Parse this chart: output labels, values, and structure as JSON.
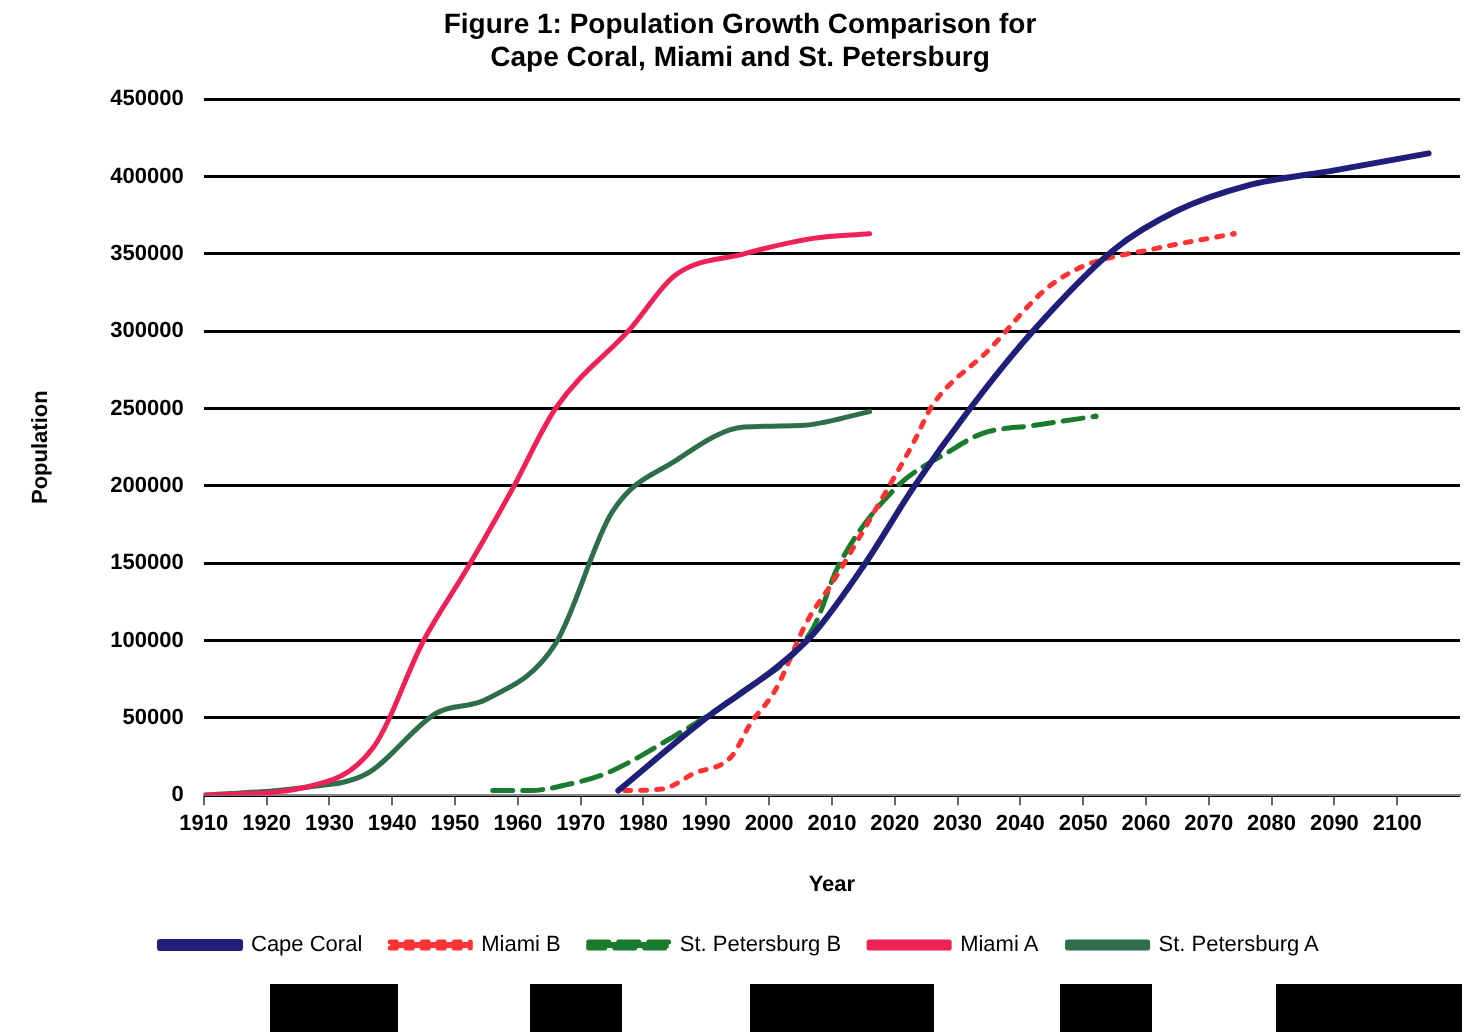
{
  "chart_data": {
    "type": "line",
    "title": "Figure 1: Population Growth Comparison for Cape Coral, Miami and St. Petersburg",
    "xlabel": "Year",
    "ylabel": "Population",
    "xlim": [
      1910,
      2110
    ],
    "xticks": [
      1910,
      1920,
      1930,
      1940,
      1950,
      1960,
      1970,
      1980,
      1990,
      2000,
      2010,
      2020,
      2030,
      2040,
      2050,
      2060,
      2070,
      2080,
      2090,
      2100
    ],
    "ylim": [
      0,
      450000
    ],
    "yticks": [
      0,
      50000,
      100000,
      150000,
      200000,
      250000,
      300000,
      350000,
      400000,
      450000
    ],
    "grid": "y",
    "legend": "bottom",
    "marker": "none",
    "series": [
      {
        "name": "Cape Coral",
        "color": "#1f1f7a",
        "line_style": "solid",
        "x": [
          1976,
          1990,
          2001,
          2007,
          2015,
          2023,
          2032,
          2042,
          2055,
          2065,
          2076,
          2090,
          2105
        ],
        "values": [
          3000,
          50000,
          82000,
          104000,
          148000,
          199000,
          250000,
          300000,
          353000,
          378000,
          394000,
          404000,
          415000
        ]
      },
      {
        "name": "Miami B",
        "color": "#ff3333",
        "line_style": "dotted",
        "x": [
          1977,
          1983,
          1988,
          1994,
          1997,
          2001,
          2006,
          2010,
          2017,
          2023,
          2026,
          2035,
          2044,
          2050,
          2061,
          2074
        ],
        "values": [
          3000,
          4000,
          14000,
          25000,
          46000,
          68000,
          112000,
          137000,
          185000,
          228000,
          252000,
          288000,
          327000,
          342000,
          353000,
          363000
        ]
      },
      {
        "name": "St. Petersburg B",
        "color": "#1a7a2e",
        "line_style": "dashed",
        "x": [
          1956,
          1962,
          1968,
          1974,
          1984,
          1995,
          2007,
          2011,
          2020,
          2029,
          2034,
          2042,
          2052
        ],
        "values": [
          3000,
          3000,
          7000,
          14000,
          36000,
          65000,
          108000,
          148000,
          198000,
          223000,
          234000,
          239000,
          245000
        ]
      },
      {
        "name": "Miami A",
        "color": "#ee2255",
        "line_style": "solid",
        "x": [
          1910,
          1926,
          1937,
          1945,
          1952,
          1959,
          1966,
          1978,
          1985,
          1996,
          2007,
          2016
        ],
        "values": [
          0,
          5000,
          31000,
          100000,
          147000,
          197000,
          250000,
          302000,
          336000,
          350000,
          360000,
          363000
        ]
      },
      {
        "name": "St. Petersburg A",
        "color": "#2e6e4a",
        "line_style": "solid",
        "x": [
          1910,
          1926,
          1936,
          1947,
          1955,
          1966,
          1975,
          1985,
          1996,
          2005,
          2016
        ],
        "values": [
          0,
          5000,
          14000,
          53000,
          62000,
          98000,
          183000,
          216000,
          238000,
          239000,
          248000
        ]
      }
    ]
  }
}
